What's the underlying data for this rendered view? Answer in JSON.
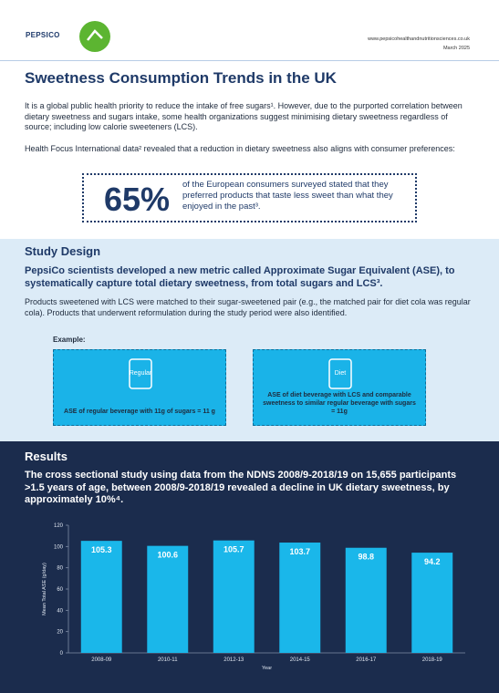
{
  "header": {
    "logo": "PEPSICO",
    "url": "www.pepsicohealthandnutritionsciences.co.uk",
    "date": "March 2025"
  },
  "title": "Sweetness Consumption Trends in the UK",
  "intro": [
    "It is a global public health priority to reduce the intake of free sugars¹. However, due to the purported correlation between dietary sweetness and sugars intake, some health organizations suggest minimising dietary sweetness regardless of source; including low calorie sweeteners (LCS).",
    "Health Focus International data² revealed that a reduction in dietary sweetness also aligns with consumer preferences:"
  ],
  "stat": {
    "value": "65%",
    "text": "of the European consumers surveyed stated that they preferred products that taste less sweet than what they enjoyed in the past³."
  },
  "study_design": {
    "heading": "Study Design",
    "lead": "PepsiCo scientists developed a new metric called Approximate Sugar Equivalent (ASE), to systematically capture total dietary sweetness, from total sugars and LCS³.",
    "body": "Products sweetened with LCS were matched to their sugar-sweetened pair (e.g., the matched pair for diet cola was regular cola). Products that underwent reformulation during the study period were also identified.",
    "example_label": "Example:",
    "examples": [
      {
        "tag": "Regular",
        "caption": "ASE of regular beverage with 11g of sugars = 11 g"
      },
      {
        "tag": "Diet",
        "caption": "ASE of diet beverage with LCS and comparable sweetness to similar regular beverage with sugars = 11g"
      }
    ]
  },
  "results": {
    "heading": "Results",
    "lead": "The cross sectional study using data from the NDNS 2008/9-2018/19 on 15,655 participants >1.5 years of age, between 2008/9-2018/19 revealed a decline in UK dietary sweetness, by approximately 10%⁴."
  },
  "chart_data": {
    "type": "bar",
    "y_label": "Mean Total ASE (g/day)",
    "x_label": "Year",
    "categories": [
      "2008-09",
      "2010-11",
      "2012-13",
      "2014-15",
      "2016-17",
      "2018-19"
    ],
    "values": [
      105.3,
      100.6,
      105.7,
      103.7,
      98.8,
      94.2
    ],
    "color": "#1ab7ea",
    "ylim": [
      0,
      120
    ],
    "yticks": [
      0,
      20,
      40,
      60,
      80,
      100,
      120
    ],
    "grid": false
  }
}
